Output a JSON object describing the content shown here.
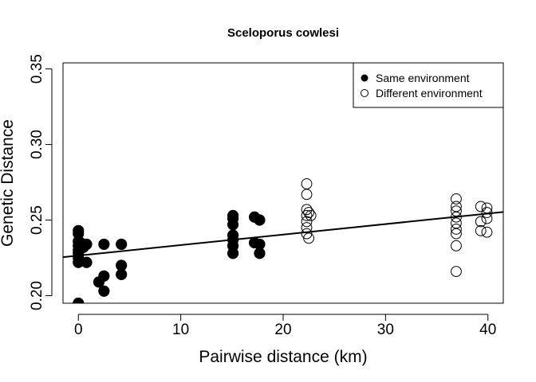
{
  "chart_data": {
    "type": "scatter",
    "title": "Sceloporus cowlesi",
    "xlabel": "Pairwise distance (km)",
    "ylabel": "Genetic Distance",
    "xlim": [
      -1.5,
      41.5
    ],
    "ylim": [
      0.195,
      0.354
    ],
    "x_ticks": [
      0,
      10,
      20,
      30,
      40
    ],
    "y_ticks": [
      0.2,
      0.25,
      0.3,
      0.35
    ],
    "x_tick_labels": [
      "0",
      "10",
      "20",
      "30",
      "40"
    ],
    "y_tick_labels": [
      "0.20",
      "0.25",
      "0.30",
      "0.35"
    ],
    "legend_position": "top-right",
    "grid": false,
    "series": [
      {
        "name": "Same environment",
        "marker": "filled-circle",
        "points": [
          [
            0,
            0.243
          ],
          [
            0,
            0.241
          ],
          [
            0,
            0.236
          ],
          [
            0,
            0.233
          ],
          [
            0,
            0.23
          ],
          [
            0,
            0.228
          ],
          [
            0,
            0.225
          ],
          [
            0,
            0.222
          ],
          [
            0,
            0.195
          ],
          [
            0.2,
            0.235
          ],
          [
            0.5,
            0.232
          ],
          [
            0.8,
            0.234
          ],
          [
            0.8,
            0.222
          ],
          [
            2.0,
            0.209
          ],
          [
            2.5,
            0.234
          ],
          [
            2.5,
            0.213
          ],
          [
            2.5,
            0.203
          ],
          [
            4.2,
            0.234
          ],
          [
            4.2,
            0.22
          ],
          [
            4.2,
            0.214
          ],
          [
            15.1,
            0.253
          ],
          [
            15.1,
            0.251
          ],
          [
            15.1,
            0.247
          ],
          [
            15.1,
            0.24
          ],
          [
            15.1,
            0.237
          ],
          [
            15.1,
            0.233
          ],
          [
            15.1,
            0.228
          ],
          [
            17.2,
            0.252
          ],
          [
            17.2,
            0.235
          ],
          [
            17.7,
            0.25
          ],
          [
            17.7,
            0.234
          ],
          [
            17.7,
            0.228
          ]
        ]
      },
      {
        "name": "Different environment",
        "marker": "open-circle",
        "points": [
          [
            22.3,
            0.274
          ],
          [
            22.3,
            0.267
          ],
          [
            22.3,
            0.257
          ],
          [
            22.3,
            0.253
          ],
          [
            22.3,
            0.249
          ],
          [
            22.3,
            0.245
          ],
          [
            22.3,
            0.241
          ],
          [
            22.5,
            0.255
          ],
          [
            22.5,
            0.238
          ],
          [
            22.7,
            0.253
          ],
          [
            36.9,
            0.264
          ],
          [
            36.9,
            0.259
          ],
          [
            36.9,
            0.256
          ],
          [
            36.9,
            0.252
          ],
          [
            36.9,
            0.248
          ],
          [
            36.9,
            0.244
          ],
          [
            36.9,
            0.241
          ],
          [
            36.9,
            0.233
          ],
          [
            36.9,
            0.216
          ],
          [
            39.3,
            0.259
          ],
          [
            39.3,
            0.249
          ],
          [
            39.3,
            0.243
          ],
          [
            39.9,
            0.258
          ],
          [
            39.9,
            0.255
          ],
          [
            39.9,
            0.251
          ],
          [
            39.9,
            0.242
          ]
        ]
      }
    ],
    "regression_line": {
      "intercept": 0.2265,
      "slope": 0.000695
    }
  }
}
